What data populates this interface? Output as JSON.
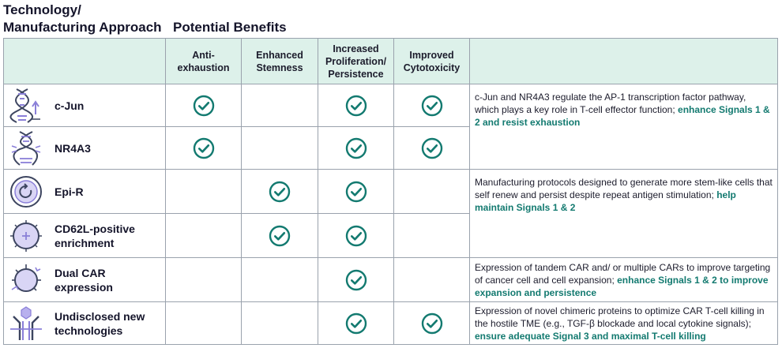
{
  "header": {
    "left_title": "Technology/ Manufacturing Approach",
    "right_title": "Potential Benefits"
  },
  "columns": {
    "anti_exhaustion": "Anti-exhaustion",
    "stemness": "Enhanced Stemness",
    "proliferation": "Increased Proliferation/ Persistence",
    "cytotoxicity": "Improved Cytotoxicity"
  },
  "rows": [
    {
      "name": "c-Jun",
      "icon": "dna-up-arrow-icon",
      "checks": [
        true,
        false,
        true,
        true
      ]
    },
    {
      "name": "NR4A3",
      "icon": "dna-burst-icon",
      "checks": [
        true,
        false,
        true,
        true
      ]
    },
    {
      "name": "Epi-R",
      "icon": "cell-circular-arrow-icon",
      "checks": [
        false,
        true,
        true,
        false
      ]
    },
    {
      "name": "CD62L-positive enrichment",
      "icon": "cell-plus-icon",
      "checks": [
        false,
        true,
        true,
        false
      ]
    },
    {
      "name": "Dual CAR expression",
      "icon": "cell-receptors-icon",
      "checks": [
        false,
        false,
        true,
        false
      ]
    },
    {
      "name": "Undisclosed new technologies",
      "icon": "receptor-hexagon-icon",
      "checks": [
        false,
        false,
        true,
        true
      ]
    }
  ],
  "descriptions": [
    {
      "text": "c-Jun and NR4A3 regulate the AP-1 transcription factor pathway, which plays a key role in T-cell effector function; ",
      "highlight": "enhance Signals 1 & 2 and resist exhaustion"
    },
    {
      "text": "Manufacturing protocols designed to generate more stem-like cells that self renew and persist despite repeat antigen stimulation; ",
      "highlight": "help maintain Signals 1 & 2"
    },
    {
      "text": "Expression of tandem CAR and/ or multiple CARs to improve targeting of cancer cell and cell expansion; ",
      "highlight": "enhance Signals 1 & 2 to improve expansion and persistence"
    },
    {
      "text": "Expression of novel chimeric proteins to optimize CAR T-cell killing in the hostile TME (e.g., TGF-β blockade and local cytokine signals); ",
      "highlight": "ensure adequate Signal 3 and maximal T-cell killing"
    }
  ],
  "colors": {
    "accent": "#137a70",
    "header_bg": "#ddf1ea",
    "icon_purple": "#8a7fd8"
  }
}
